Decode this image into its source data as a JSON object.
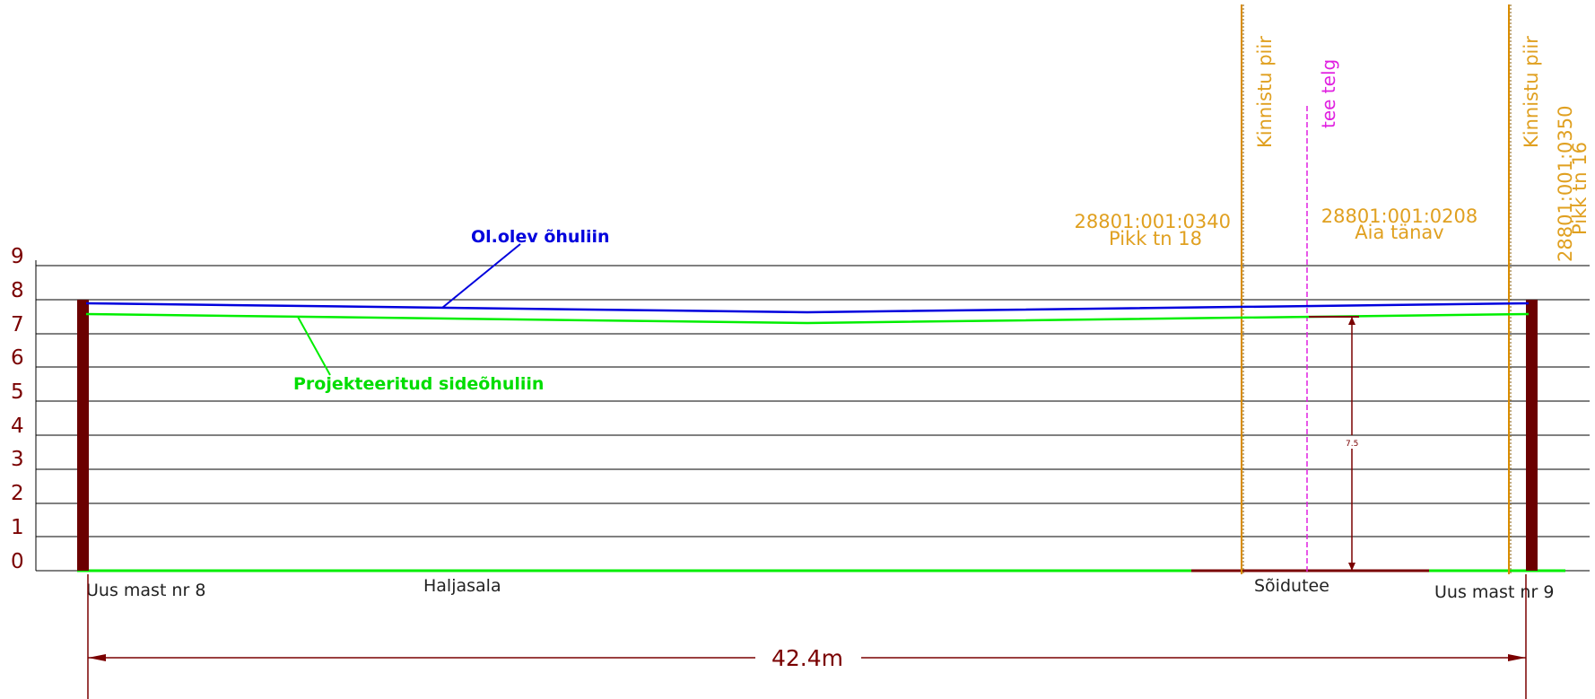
{
  "y_axis_labels": [
    "0",
    "1",
    "2",
    "3",
    "4",
    "5",
    "6",
    "7",
    "8",
    "9"
  ],
  "lines": {
    "existing": "Ol.olev õhuliin",
    "projected": "Projekteeritud sideõhuliin"
  },
  "masts": {
    "left": "Uus mast nr 8",
    "right": "Uus mast nr 9"
  },
  "ground": {
    "grass": "Haljasala",
    "road": "Sõidutee"
  },
  "parcels": {
    "left": {
      "id": "28801:001:0340",
      "name": "Pikk tn 18"
    },
    "middle": {
      "id": "28801:001:0208",
      "name": "Aia tänav"
    },
    "right": {
      "id": "28801:001:0350",
      "name": "Pikk tn 16"
    }
  },
  "vertical_labels": {
    "boundary_1": "Kinnistu piir",
    "road_axis": "tee telg",
    "boundary_2": "Kinnistu piir"
  },
  "dimensions": {
    "span": "42.4m",
    "clearance": "7.5"
  },
  "colors": {
    "mast": "#6b0000",
    "existing_line": "#0000dd",
    "projected_line": "#00ee00",
    "boundary": "#d98c00",
    "road_axis": "#e020e0",
    "dimension": "#7a0000",
    "grid": "#000000"
  }
}
